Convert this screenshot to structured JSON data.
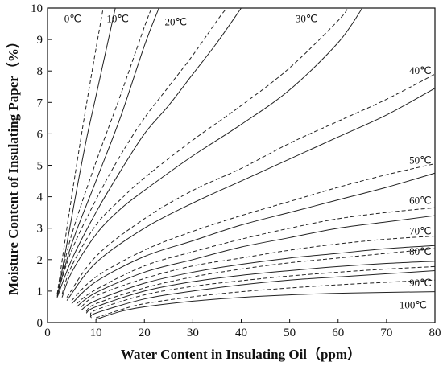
{
  "chart_data": {
    "type": "line",
    "xlabel": "Water Content in Insulating Oil（ppm）",
    "ylabel": "Moisture Content of Insulating Paper（%）",
    "xlim": [
      0,
      80
    ],
    "ylim": [
      0,
      10
    ],
    "x_ticks": [
      0,
      10,
      20,
      30,
      40,
      50,
      60,
      70,
      80
    ],
    "y_ticks": [
      0,
      1,
      2,
      3,
      4,
      5,
      6,
      7,
      8,
      9,
      10
    ],
    "grid": false,
    "line_styles": [
      "solid",
      "dashed"
    ],
    "temperature_labels": [
      {
        "text": "0℃",
        "x": 5.2,
        "y": 9.65
      },
      {
        "text": "10℃",
        "x": 14.5,
        "y": 9.65
      },
      {
        "text": "20℃",
        "x": 26.5,
        "y": 9.55
      },
      {
        "text": "30℃",
        "x": 53.5,
        "y": 9.65
      },
      {
        "text": "40℃",
        "x": 77,
        "y": 8.0
      },
      {
        "text": "50℃",
        "x": 77,
        "y": 5.15
      },
      {
        "text": "60℃",
        "x": 77,
        "y": 3.88
      },
      {
        "text": "70℃",
        "x": 77,
        "y": 2.9
      },
      {
        "text": "80℃",
        "x": 77,
        "y": 2.25
      },
      {
        "text": "90℃",
        "x": 77,
        "y": 1.25
      },
      {
        "text": "100℃",
        "x": 75.5,
        "y": 0.55
      }
    ],
    "series": [
      {
        "style": "solid",
        "x": [
          2,
          4,
          6,
          8,
          10,
          12,
          14
        ],
        "y": [
          0.8,
          2.5,
          4.2,
          5.8,
          7.2,
          8.6,
          10
        ]
      },
      {
        "style": "dashed",
        "x": [
          2,
          4,
          6,
          8,
          10,
          11.5
        ],
        "y": [
          0.9,
          3.0,
          5.0,
          6.9,
          8.7,
          10
        ]
      },
      {
        "style": "solid",
        "x": [
          2,
          5,
          10,
          15,
          20,
          23
        ],
        "y": [
          0.85,
          2.5,
          4.5,
          6.5,
          8.8,
          10
        ]
      },
      {
        "style": "dashed",
        "x": [
          2,
          5,
          10,
          15,
          20,
          21.5
        ],
        "y": [
          0.9,
          2.8,
          5.1,
          7.2,
          9.4,
          10
        ]
      },
      {
        "style": "solid",
        "x": [
          2,
          5,
          10,
          15,
          20,
          25,
          30,
          35,
          40
        ],
        "y": [
          0.8,
          2.0,
          3.5,
          4.8,
          6.0,
          6.9,
          7.9,
          8.9,
          10
        ]
      },
      {
        "style": "dashed",
        "x": [
          2,
          5,
          10,
          15,
          20,
          25,
          30,
          35,
          37
        ],
        "y": [
          0.9,
          2.3,
          3.9,
          5.3,
          6.5,
          7.5,
          8.5,
          9.6,
          10
        ]
      },
      {
        "style": "solid",
        "x": [
          3,
          5,
          10,
          15,
          20,
          30,
          40,
          50,
          60,
          65
        ],
        "y": [
          0.8,
          1.6,
          2.8,
          3.6,
          4.2,
          5.3,
          6.3,
          7.4,
          8.9,
          10
        ]
      },
      {
        "style": "dashed",
        "x": [
          3,
          5,
          10,
          15,
          20,
          30,
          40,
          50,
          60,
          62
        ],
        "y": [
          0.9,
          1.8,
          3.1,
          3.9,
          4.6,
          5.8,
          6.9,
          8.1,
          9.6,
          10
        ]
      },
      {
        "style": "solid",
        "x": [
          4,
          10,
          20,
          30,
          40,
          50,
          60,
          70,
          80
        ],
        "y": [
          0.7,
          1.9,
          3.0,
          3.8,
          4.5,
          5.2,
          5.9,
          6.6,
          7.45
        ]
      },
      {
        "style": "dashed",
        "x": [
          4,
          10,
          20,
          30,
          40,
          50,
          60,
          70,
          80
        ],
        "y": [
          0.8,
          2.1,
          3.3,
          4.2,
          4.9,
          5.7,
          6.4,
          7.1,
          7.9
        ]
      },
      {
        "style": "solid",
        "x": [
          5,
          10,
          20,
          30,
          40,
          50,
          60,
          70,
          80
        ],
        "y": [
          0.6,
          1.3,
          2.1,
          2.6,
          3.1,
          3.5,
          3.9,
          4.3,
          4.75
        ]
      },
      {
        "style": "dashed",
        "x": [
          5,
          10,
          20,
          30,
          40,
          50,
          60,
          70,
          80
        ],
        "y": [
          0.7,
          1.45,
          2.3,
          2.9,
          3.4,
          3.85,
          4.3,
          4.7,
          5.05
        ]
      },
      {
        "style": "solid",
        "x": [
          6,
          10,
          20,
          30,
          40,
          50,
          60,
          70,
          80
        ],
        "y": [
          0.5,
          0.95,
          1.6,
          2.0,
          2.4,
          2.7,
          3.0,
          3.2,
          3.4
        ]
      },
      {
        "style": "dashed",
        "x": [
          6,
          10,
          20,
          30,
          40,
          50,
          60,
          70,
          80
        ],
        "y": [
          0.6,
          1.05,
          1.8,
          2.25,
          2.65,
          3.0,
          3.3,
          3.5,
          3.65
        ]
      },
      {
        "style": "solid",
        "x": [
          7,
          10,
          20,
          30,
          40,
          50,
          60,
          70,
          80
        ],
        "y": [
          0.4,
          0.7,
          1.25,
          1.6,
          1.85,
          2.05,
          2.2,
          2.35,
          2.45
        ]
      },
      {
        "style": "dashed",
        "x": [
          7,
          10,
          20,
          30,
          40,
          50,
          60,
          70,
          80
        ],
        "y": [
          0.5,
          0.85,
          1.4,
          1.8,
          2.05,
          2.3,
          2.5,
          2.65,
          2.75
        ]
      },
      {
        "style": "solid",
        "x": [
          8,
          10,
          20,
          30,
          40,
          50,
          60,
          70,
          80
        ],
        "y": [
          0.3,
          0.5,
          1.0,
          1.3,
          1.5,
          1.65,
          1.78,
          1.88,
          1.95
        ]
      },
      {
        "style": "dashed",
        "x": [
          8,
          10,
          20,
          30,
          40,
          50,
          60,
          70,
          80
        ],
        "y": [
          0.35,
          0.6,
          1.1,
          1.45,
          1.7,
          1.9,
          2.05,
          2.2,
          2.35
        ]
      },
      {
        "style": "solid",
        "x": [
          9,
          10,
          20,
          30,
          40,
          50,
          60,
          70,
          80
        ],
        "y": [
          0.15,
          0.3,
          0.75,
          1.0,
          1.2,
          1.35,
          1.45,
          1.55,
          1.65
        ]
      },
      {
        "style": "dashed",
        "x": [
          9,
          10,
          20,
          30,
          40,
          50,
          60,
          70,
          80
        ],
        "y": [
          0.2,
          0.4,
          0.88,
          1.15,
          1.33,
          1.48,
          1.6,
          1.7,
          1.78
        ]
      },
      {
        "style": "solid",
        "x": [
          10,
          15,
          20,
          30,
          40,
          50,
          60,
          70,
          80
        ],
        "y": [
          0.1,
          0.35,
          0.5,
          0.68,
          0.8,
          0.88,
          0.93,
          0.96,
          0.98
        ]
      },
      {
        "style": "dashed",
        "x": [
          10,
          15,
          20,
          30,
          40,
          50,
          60,
          70,
          80
        ],
        "y": [
          0.15,
          0.4,
          0.6,
          0.82,
          0.98,
          1.1,
          1.2,
          1.28,
          1.35
        ]
      }
    ]
  }
}
